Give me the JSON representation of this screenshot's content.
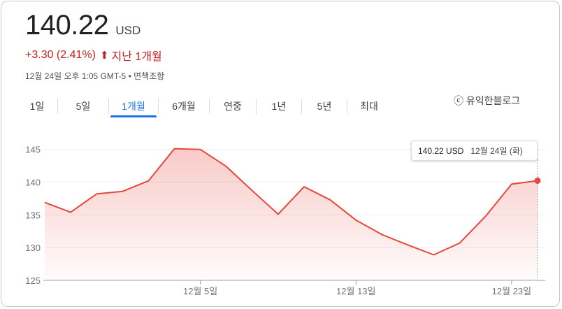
{
  "quote": {
    "price": "140.22",
    "currency": "USD",
    "change": "+3.30 (2.41%)",
    "change_period": "지난 1개월",
    "timestamp": "12월 24일 오후 1:05 GMT-5",
    "disclaimer": "면책조항"
  },
  "tabs": [
    "1일",
    "5일",
    "1개월",
    "6개월",
    "연중",
    "1년",
    "5년",
    "최대"
  ],
  "active_tab": "1개월",
  "watermark": "ⓒ 유익한블로그",
  "tooltip": {
    "price": "140.22 USD",
    "date": "12월 24일 (화)"
  },
  "colors": {
    "line": "#e8453c",
    "negative_text": "#c5221f",
    "accent": "#1a73e8"
  },
  "chart_data": {
    "type": "area",
    "series": [
      {
        "values": [
          136.9,
          135.4,
          138.2,
          138.6,
          140.2,
          145.1,
          145.0,
          142.4,
          138.7,
          135.1,
          139.3,
          137.3,
          134.2,
          132.0,
          130.4,
          128.9,
          130.7,
          134.8,
          139.7,
          140.22
        ]
      }
    ],
    "x_ticks": [
      "12월 5일",
      "12월 13일",
      "12월 23일"
    ],
    "x_tick_indices": [
      6,
      12,
      18
    ],
    "yticks": [
      125,
      130,
      135,
      140,
      145
    ],
    "ylim": [
      125,
      147
    ],
    "grid": true
  }
}
